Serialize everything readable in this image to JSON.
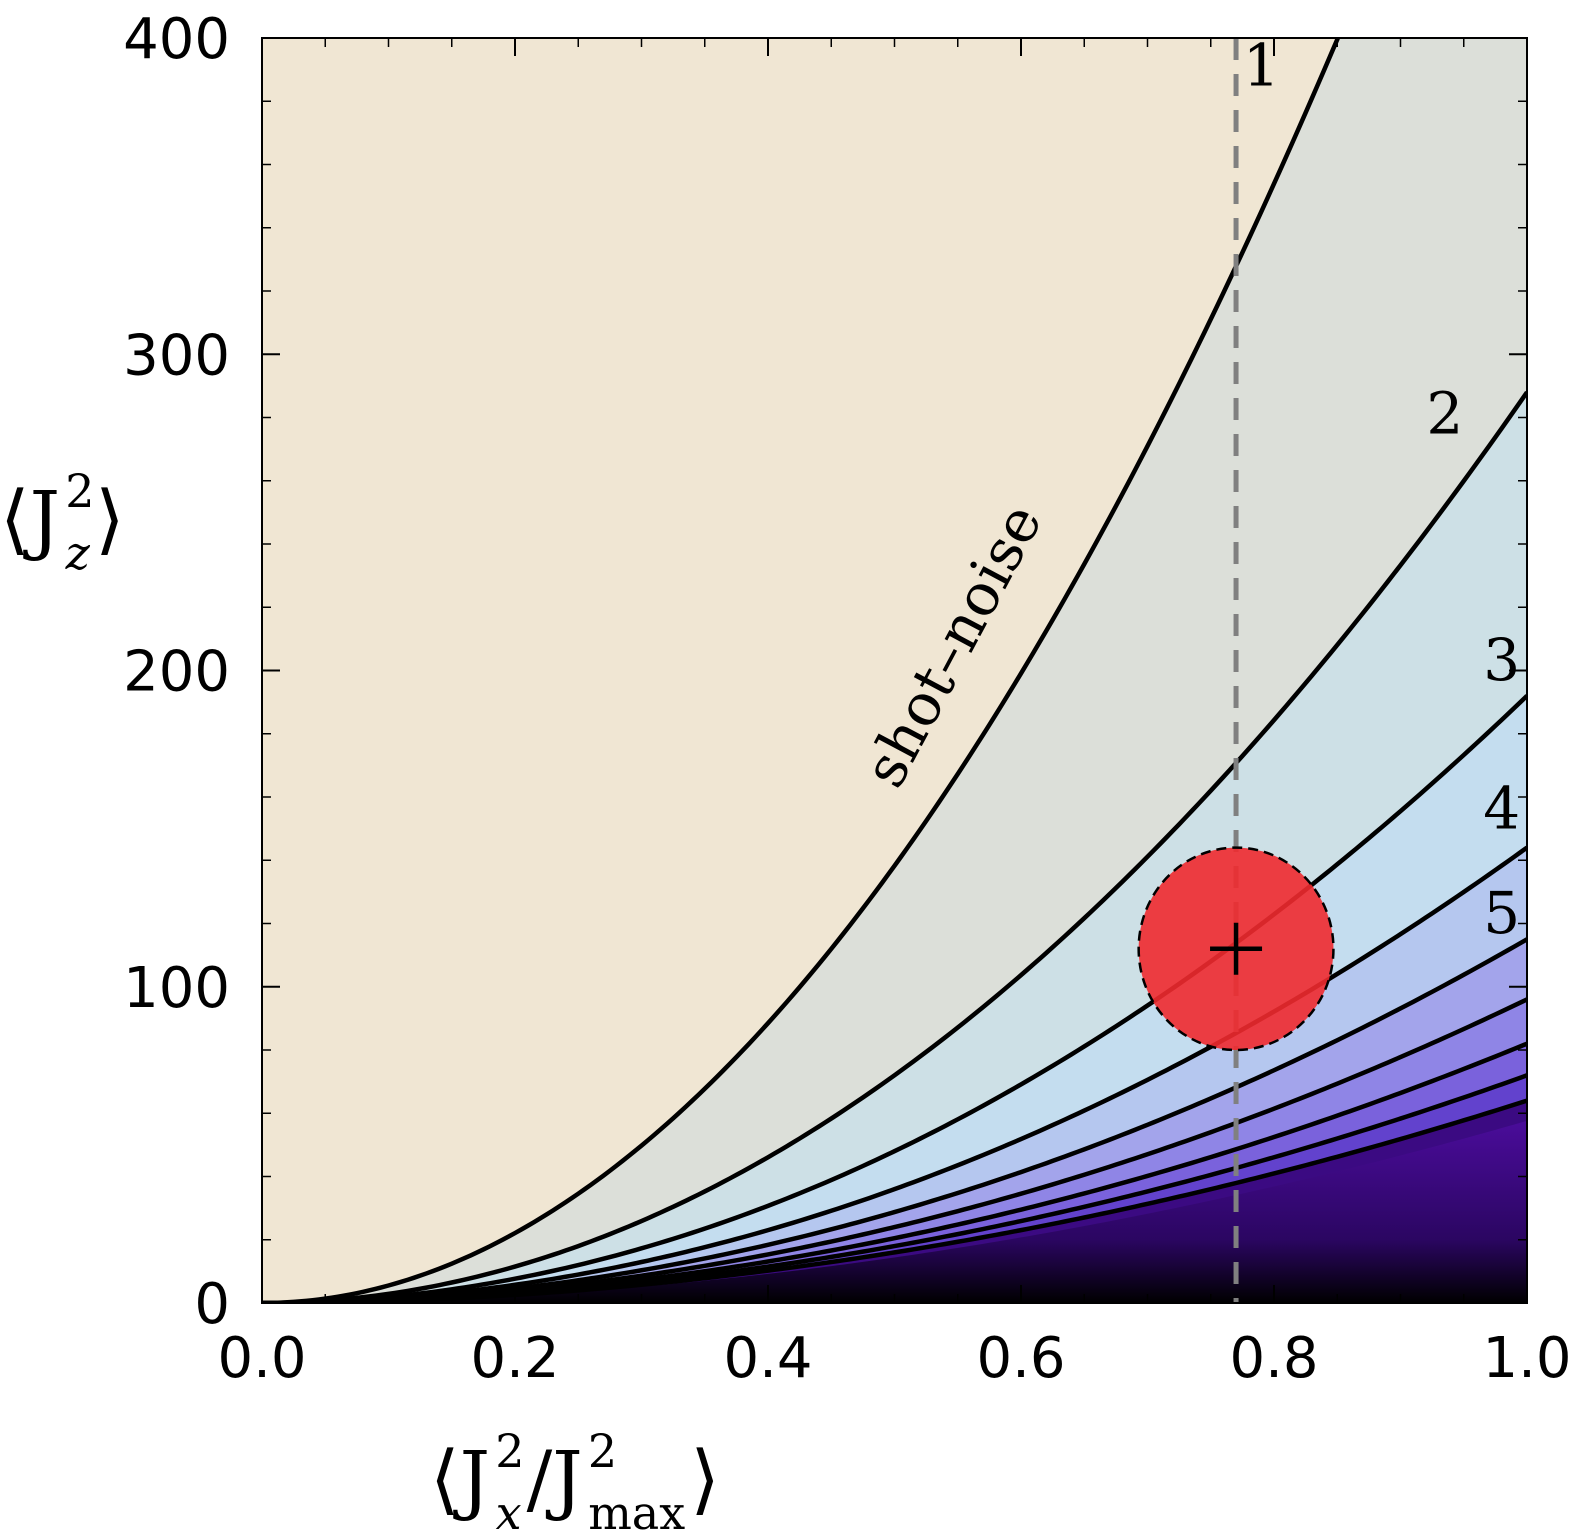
{
  "chart_data": {
    "type": "contour",
    "title": "",
    "xlabel": {
      "prefix": "⟨J",
      "sup1": "2",
      "sub1": "x",
      "mid": "/J",
      "sup2": "2",
      "sub2": "max",
      "suffix": "⟩"
    },
    "ylabel": {
      "prefix": "⟨J",
      "sup": "2",
      "sub": "z",
      "suffix": "⟩"
    },
    "xlim": [
      0.0,
      1.0
    ],
    "ylim": [
      0,
      400
    ],
    "x_ticks": [
      {
        "value": 0.0,
        "label": "0.0"
      },
      {
        "value": 0.2,
        "label": "0.2"
      },
      {
        "value": 0.4,
        "label": "0.4"
      },
      {
        "value": 0.6,
        "label": "0.6"
      },
      {
        "value": 0.8,
        "label": "0.8"
      },
      {
        "value": 1.0,
        "label": "1.0"
      }
    ],
    "y_ticks": [
      {
        "value": 0,
        "label": "0"
      },
      {
        "value": 100,
        "label": "100"
      },
      {
        "value": 200,
        "label": "200"
      },
      {
        "value": 300,
        "label": "300"
      },
      {
        "value": 400,
        "label": "400"
      }
    ],
    "contours": [
      {
        "label": "1",
        "coef": 553,
        "label_x": 0.79,
        "label_y": 385
      },
      {
        "label": "2",
        "coef": 288,
        "label_x": 0.935,
        "label_y": 275
      },
      {
        "label": "3",
        "coef": 192,
        "label_x": 0.98,
        "label_y": 197
      },
      {
        "label": "4",
        "coef": 144,
        "label_x": 0.98,
        "label_y": 150
      },
      {
        "label": "5",
        "coef": 115,
        "label_x": 0.98,
        "label_y": 117
      },
      {
        "label": "",
        "coef": 96
      },
      {
        "label": "",
        "coef": 82
      },
      {
        "label": "",
        "coef": 72
      },
      {
        "label": "",
        "coef": 64
      }
    ],
    "contour_exponent": 2,
    "shot_noise_label": "shot–noise",
    "shot_noise_label_position": {
      "x": 0.56,
      "y": 205
    },
    "shot_noise_label_angle": -62,
    "vertical_line": {
      "x": 0.77,
      "style": "dashed",
      "color": "#808080"
    },
    "marker": {
      "x": 0.77,
      "y": 112,
      "symbol": "+"
    },
    "uncertainty_ellipse": {
      "x_center": 0.77,
      "y_center": 112,
      "x_radius": 0.077,
      "y_radius": 32,
      "color": "#ef2a2f"
    },
    "colors": {
      "background": "#f0e6d3",
      "shot_noise_region": "#dcdfd9",
      "region_2_3": "#cde0e6",
      "region_3_4": "#c4ddef",
      "region_4_5": "#b5c7ef",
      "region_5_6": "#a3a4eb",
      "region_6_7": "#8f85e6",
      "region_7_8": "#7a62dc",
      "region_8_9": "#6242cd",
      "region_deep": "#3b0a82",
      "bottom": "#000000",
      "contour_line": "#000000"
    }
  }
}
